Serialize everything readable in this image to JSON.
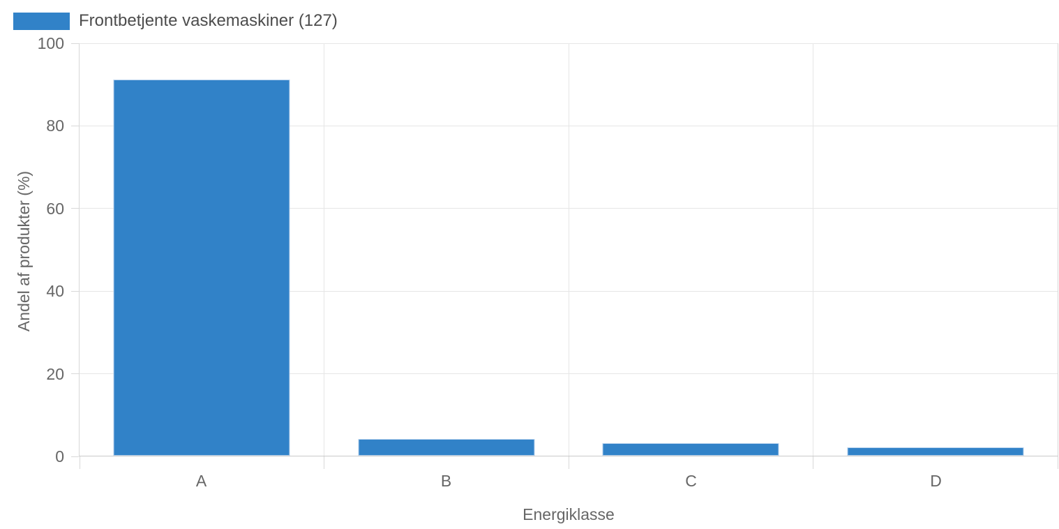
{
  "chart_data": {
    "type": "bar",
    "title": "",
    "categories": [
      "A",
      "B",
      "C",
      "D"
    ],
    "series": [
      {
        "name": "Frontbetjente vaskemaskiner (127)",
        "values": [
          91,
          4,
          3,
          2
        ],
        "color": "#3182c8",
        "border_color": "#b9d3ee"
      }
    ],
    "xlabel": "Energiklasse",
    "ylabel": "Andel af produkter (%)",
    "ylim": [
      0,
      100
    ],
    "yticks": [
      0,
      20,
      40,
      60,
      80,
      100
    ],
    "grid": true,
    "legend_position": "top-left",
    "colors": {
      "grid": "#e6e6e6",
      "axis": "#d8d8d8",
      "baseline": "#c9c9c9",
      "tick_label": "#666666",
      "axis_title": "#666666",
      "legend_text": "#4d4d4d"
    }
  }
}
